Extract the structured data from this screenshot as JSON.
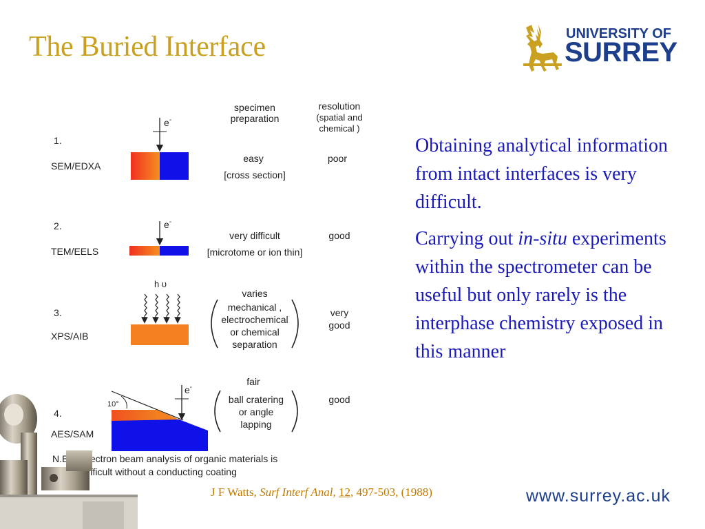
{
  "slide": {
    "title": "The Buried Interface",
    "footer_url": "www.surrey.ac.uk"
  },
  "logo": {
    "line1": "UNIVERSITY OF",
    "line2": "SURREY"
  },
  "body": {
    "para1": "Obtaining analytical information from intact interfaces is very difficult.",
    "para2_before": "Carrying out ",
    "para2_italic": "in-situ",
    "para2_after": " experiments within the spectrometer can be useful but only rarely is the interphase chemistry exposed in this manner"
  },
  "citation": {
    "authors": "J F Watts, ",
    "journal": "Surf Interf Anal",
    "sep1": ", ",
    "volume": "12",
    "rest": ", 497-503, (1988)"
  },
  "figure": {
    "header_prep_1": "specimen",
    "header_prep_2": "preparation",
    "header_res_1": "resolution",
    "header_res_2": "(spatial and",
    "header_res_3": "chemical )",
    "electron_symbol": "e",
    "electron_sup": "-",
    "photon_symbol": "h υ",
    "angle_label": "10°",
    "rows": [
      {
        "number": "1.",
        "technique": "SEM/EDXA",
        "prep_1": "easy",
        "prep_2": "[cross section]",
        "resolution": "poor"
      },
      {
        "number": "2.",
        "technique": "TEM/EELS",
        "prep_1": "very difficult",
        "prep_2": "[microtome or ion thin]",
        "resolution": "good"
      },
      {
        "number": "3.",
        "technique": "XPS/AIB",
        "prep_1": "varies",
        "prep_2": "mechanical ,",
        "prep_3": "electrochemical",
        "prep_4": "or chemical",
        "prep_5": "separation",
        "resolution_1": "very",
        "resolution_2": "good"
      },
      {
        "number": "4.",
        "technique": "AES/SAM",
        "prep_1": "fair",
        "prep_2": "ball cratering",
        "prep_3": "or angle",
        "prep_4": "lapping",
        "resolution": "good"
      }
    ],
    "note_label": "N.B.",
    "note_1": "electron beam analysis of organic materials is",
    "note_2": "difficult without a conducting coating"
  },
  "colors": {
    "title": "#c9a020",
    "body_text": "#1a1ab8",
    "brand_blue": "#1d3e8a",
    "citation": "#c07a00",
    "specimen_red": "#f03020",
    "specimen_blue": "#1010e8",
    "specimen_orange": "#f58020"
  }
}
